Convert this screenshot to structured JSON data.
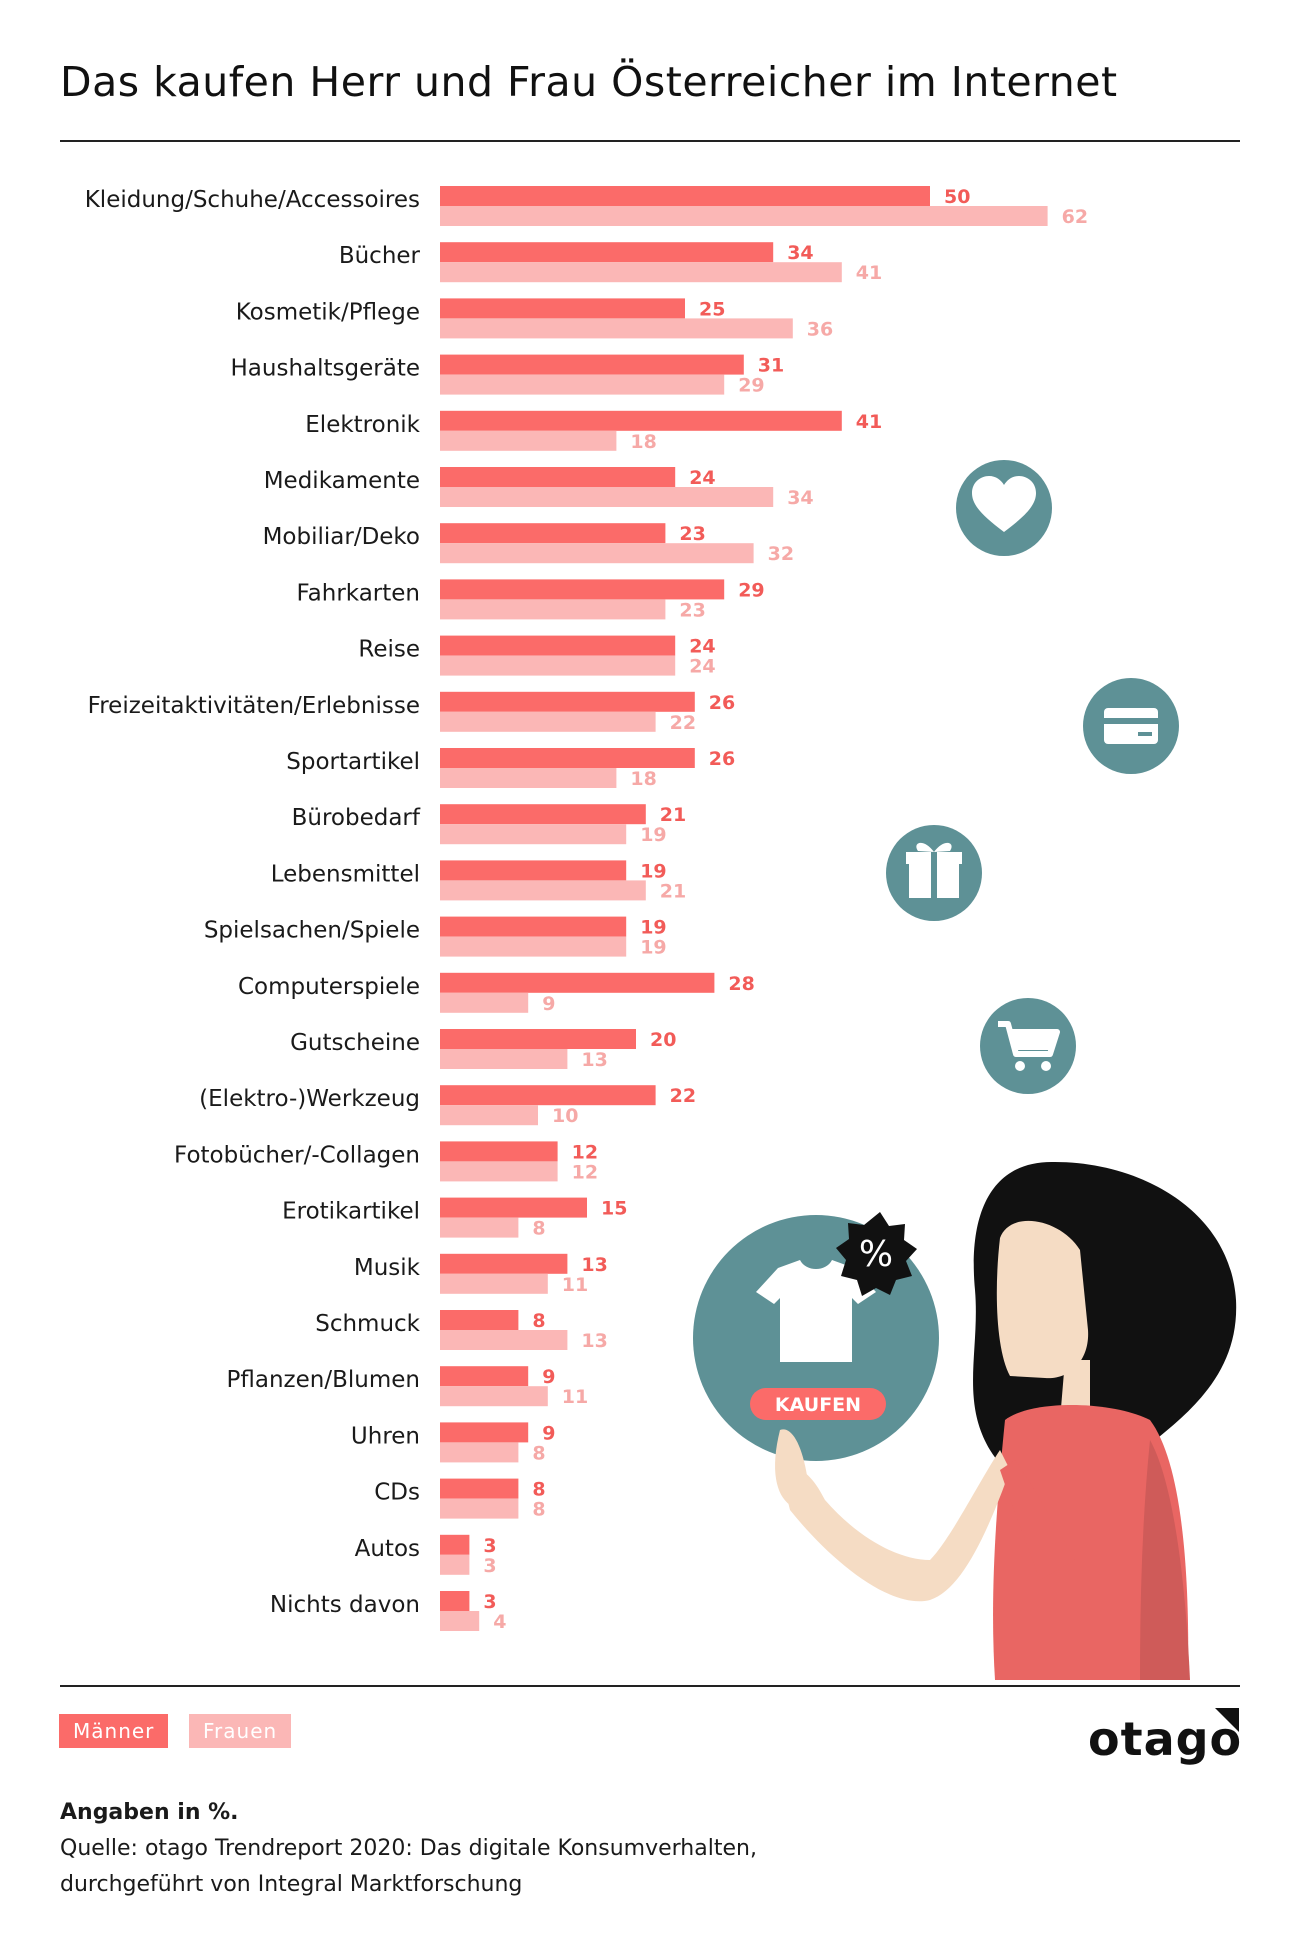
{
  "title": "Das kaufen Herr und Frau Österreicher im Internet",
  "colors": {
    "maenner": "#fb6b69",
    "frauen": "#fbb7b6",
    "teal": "#5e9196",
    "shirt_pink": "#e96663",
    "skin": "#f5dcc4"
  },
  "chart_data": {
    "type": "bar",
    "orientation": "horizontal",
    "unit": "%",
    "categories": [
      "Kleidung/Schuhe/Accessoires",
      "Bücher",
      "Kosmetik/Pflege",
      "Haushaltsgeräte",
      "Elektronik",
      "Medikamente",
      "Mobiliar/Deko",
      "Fahrkarten",
      "Reise",
      "Freizeitaktivitäten/Erlebnisse",
      "Sportartikel",
      "Bürobedarf",
      "Lebensmittel",
      "Spielsachen/Spiele",
      "Computerspiele",
      "Gutscheine",
      "(Elektro-)Werkzeug",
      "Fotobücher/-Collagen",
      "Erotikartikel",
      "Musik",
      "Schmuck",
      "Pflanzen/Blumen",
      "Uhren",
      "CDs",
      "Autos",
      "Nichts davon"
    ],
    "series": [
      {
        "name": "Männer",
        "values": [
          50,
          34,
          25,
          31,
          41,
          24,
          23,
          29,
          24,
          26,
          26,
          21,
          19,
          19,
          28,
          20,
          22,
          12,
          15,
          13,
          8,
          9,
          9,
          8,
          3,
          3
        ]
      },
      {
        "name": "Frauen",
        "values": [
          62,
          41,
          36,
          29,
          18,
          34,
          32,
          23,
          24,
          22,
          18,
          19,
          21,
          19,
          9,
          13,
          10,
          12,
          8,
          11,
          13,
          11,
          8,
          8,
          3,
          4
        ]
      }
    ]
  },
  "legend": {
    "maenner": "Männer",
    "frauen": "Frauen"
  },
  "illustration": {
    "button_label": "KAUFEN",
    "badge_symbol": "%",
    "icons": [
      "heart-icon",
      "credit-card-icon",
      "gift-icon",
      "shopping-cart-icon",
      "tshirt-icon"
    ]
  },
  "logo": "otago",
  "footer": {
    "note": "Angaben in %.",
    "source_line1": "Quelle: otago Trendreport 2020: Das digitale Konsumverhalten,",
    "source_line2": "durchgeführt von Integral Marktforschung"
  }
}
